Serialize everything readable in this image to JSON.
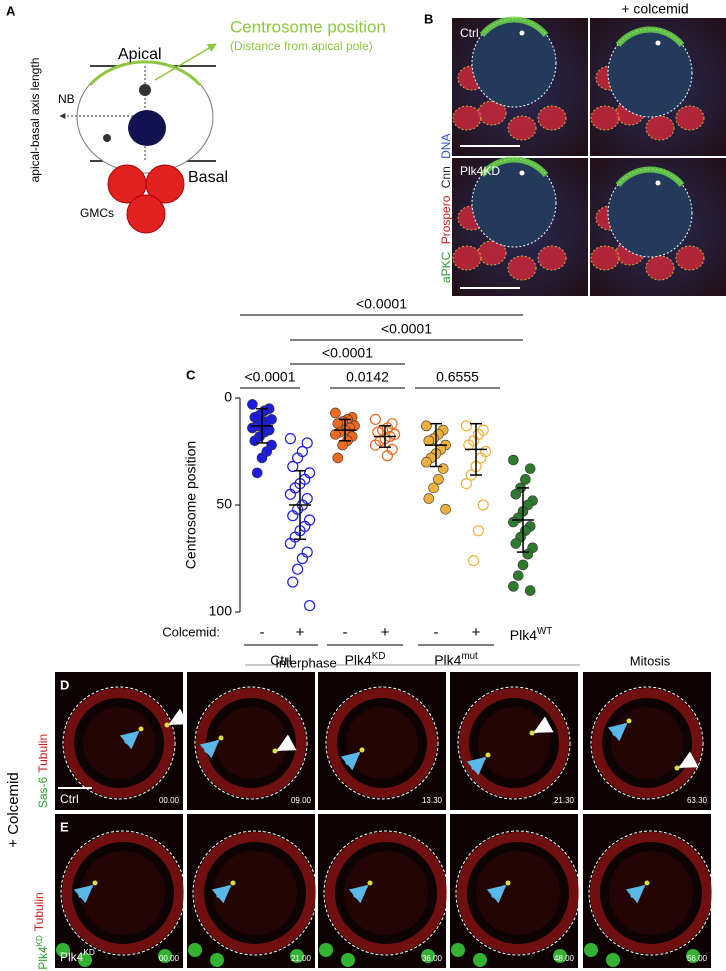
{
  "panel_a": {
    "letter": "A",
    "title": "Centrosome position",
    "subtitle": "(Distance from apical pole)",
    "apical": "Apical",
    "basal": "Basal",
    "nb": "NB",
    "gmcs": "GMCs",
    "axis_label": "apical-basal axis length"
  },
  "panel_b": {
    "letter": "B",
    "condition": "+ colcemid",
    "rows": [
      "Ctrl",
      "Plk4KD"
    ],
    "stains": [
      "aPKC",
      "Prospero",
      "Cnn",
      "DNA"
    ]
  },
  "chart_data": {
    "type": "strip",
    "panel": "C",
    "ylabel": "Centrosome position",
    "ylim": [
      0,
      100
    ],
    "inverted": true,
    "yticks": [
      0,
      50,
      100
    ],
    "colcemid_label": "Colcemid:",
    "comparisons": [
      "<0.0001",
      "<0.0001",
      "<0.0001",
      "<0.0001",
      "0.0142",
      "0.6555"
    ],
    "genotypes": [
      {
        "label": {
          "text": "Ctrl"
        },
        "groups": [
          {
            "colcemid": "-",
            "color": "#1c1ce0",
            "filled": true,
            "mean": 13,
            "err": 8,
            "values": [
              3,
              5,
              6,
              8,
              9,
              10,
              11,
              12,
              13,
              14,
              15,
              16,
              18,
              20,
              22,
              25,
              28,
              35
            ]
          },
          {
            "colcemid": "+",
            "color": "#1c1ce0",
            "filled": false,
            "mean": 50,
            "err": 16,
            "values": [
              19,
              21,
              25,
              28,
              32,
              35,
              38,
              40,
              42,
              45,
              47,
              50,
              52,
              55,
              57,
              60,
              62,
              65,
              68,
              72,
              75,
              80,
              86,
              97
            ]
          }
        ]
      },
      {
        "label": {
          "text": "Plk4",
          "sup": "KD"
        },
        "groups": [
          {
            "colcemid": "-",
            "color": "#ee6a1e",
            "filled": true,
            "mean": 15,
            "err": 5,
            "values": [
              7,
              9,
              10,
              11,
              12,
              13,
              14,
              15,
              16,
              17,
              18,
              20,
              22,
              28
            ]
          },
          {
            "colcemid": "+",
            "color": "#ee6a1e",
            "filled": false,
            "mean": 18,
            "err": 5,
            "values": [
              10,
              12,
              14,
              15,
              16,
              17,
              18,
              19,
              20,
              22,
              24,
              27
            ]
          }
        ]
      },
      {
        "label": {
          "text": "Plk4",
          "sup": "mut"
        },
        "groups": [
          {
            "colcemid": "-",
            "color": "#eeb23c",
            "filled": true,
            "mean": 22,
            "err": 10,
            "values": [
              13,
              15,
              17,
              19,
              20,
              22,
              24,
              26,
              28,
              30,
              33,
              38,
              42,
              47,
              52
            ]
          },
          {
            "colcemid": "+",
            "color": "#eeb23c",
            "filled": false,
            "mean": 24,
            "err": 12,
            "values": [
              13,
              15,
              17,
              20,
              22,
              25,
              28,
              32,
              36,
              40,
              50,
              62,
              76
            ]
          }
        ]
      },
      {
        "label": {
          "text": "Plk4",
          "sup": "WT"
        },
        "groups": [
          {
            "color": "#2e7a2e",
            "filled": true,
            "mean": 57,
            "err": 15,
            "values": [
              29,
              33,
              38,
              42,
              45,
              48,
              50,
              53,
              56,
              58,
              60,
              62,
              65,
              68,
              70,
              73,
              78,
              83,
              88,
              90
            ]
          }
        ]
      }
    ]
  },
  "panels_de": {
    "phases": [
      "Interphase",
      "Mitosis"
    ],
    "side_label": "+ Colcemid",
    "rows": [
      {
        "letter": "D",
        "stain": [
          {
            "text": "Sas-6"
          },
          {
            "text": "Tubulin"
          }
        ],
        "genotype": {
          "text": "Ctrl"
        },
        "times": [
          "00.00",
          "09.00",
          "13.30",
          "21.30",
          "63.30"
        ]
      },
      {
        "letter": "E",
        "stain": [
          {
            "text": "Plk4",
            "sup": "KD"
          },
          {
            "text": "Tubulin"
          }
        ],
        "genotype": {
          "text": "Plk4",
          "sup": "KD"
        },
        "times": [
          "00.00",
          "21.00",
          "36.00",
          "48.00",
          "56.00"
        ]
      }
    ]
  }
}
